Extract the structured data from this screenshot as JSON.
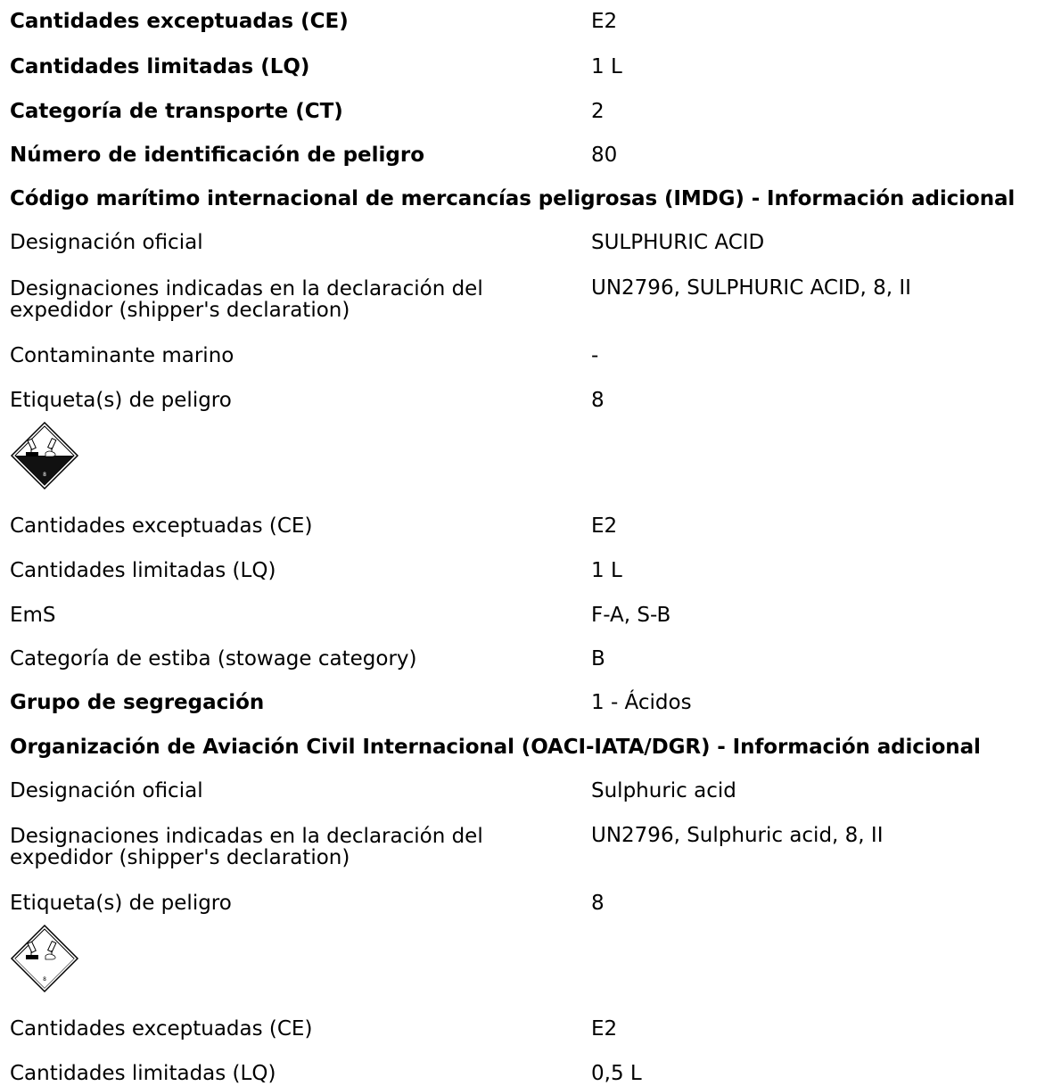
{
  "rows_top": [
    {
      "label": "Cantidades exceptuadas (CE)",
      "value": "E2"
    },
    {
      "label": "Cantidades limitadas (LQ)",
      "value": "1 L"
    },
    {
      "label": "Categoría de transporte (CT)",
      "value": "2"
    },
    {
      "label": "Número de identificación de peligro",
      "value": "80"
    }
  ],
  "imdg": {
    "heading": "Código marítimo internacional de mercancías peligrosas (IMDG) - Información adicional",
    "designation_label": "Designación oficial",
    "designation_value": "SULPHURIC ACID",
    "shipper_label": "Designaciones indicadas en la declaración del expedidor (shipper's declaration)",
    "shipper_value": "UN2796, SULPHURIC ACID, 8, II",
    "marine_label": "Contaminante marino",
    "marine_value": "-",
    "hazard_label": "Etiqueta(s) de peligro",
    "hazard_value": "8",
    "pictogram": "corrosive-class-8-icon",
    "pictogram_number": "8",
    "ce_label": "Cantidades exceptuadas (CE)",
    "ce_value": "E2",
    "lq_label": "Cantidades limitadas (LQ)",
    "lq_value": "1 L",
    "ems_label": "EmS",
    "ems_value": "F-A, S-B",
    "stowage_label": "Categoría de estiba (stowage category)",
    "stowage_value": "B",
    "segregation_label": "Grupo de segregación",
    "segregation_value": "1 - Ácidos"
  },
  "icao": {
    "heading": "Organización de Aviación Civil Internacional (OACI-IATA/DGR) - Información adicional",
    "designation_label": "Designación oficial",
    "designation_value": "Sulphuric acid",
    "shipper_label": "Designaciones indicadas en la declaración del expedidor (shipper's declaration)",
    "shipper_value": "UN2796, Sulphuric acid, 8, II",
    "hazard_label": "Etiqueta(s) de peligro",
    "hazard_value": "8",
    "pictogram": "corrosive-class-8-icon",
    "pictogram_number": "8",
    "ce_label": "Cantidades exceptuadas (CE)",
    "ce_value": "E2",
    "lq_label": "Cantidades limitadas (LQ)",
    "lq_value": "0,5 L"
  },
  "colors": {
    "text": "#000000",
    "background": "#ffffff"
  }
}
